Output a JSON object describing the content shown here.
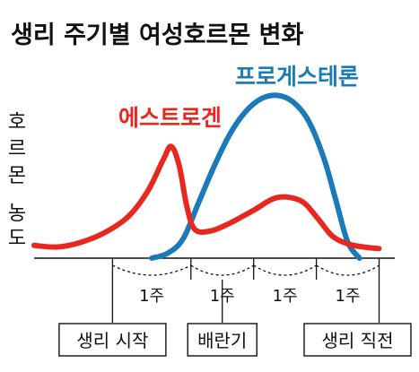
{
  "chart_data": {
    "type": "line",
    "title": "생리 주기별 여성호르몬 변화",
    "ylabel": "호르몬 농도",
    "x_unit": "주",
    "xlim": [
      0,
      4.6
    ],
    "ylim": [
      0,
      1
    ],
    "grid": false,
    "legend": "inline labels",
    "colors": {
      "estrogen": "#e8281e",
      "progesterone": "#1b7ab8",
      "text": "#111111"
    },
    "series": [
      {
        "name": "에스트로겐",
        "color": "#e8281e",
        "x": [
          0,
          0.3,
          0.6,
          0.9,
          1.2,
          1.45,
          1.65,
          1.75,
          1.85,
          1.95,
          2.05,
          2.25,
          2.5,
          2.8,
          3.1,
          3.4,
          3.6,
          3.8,
          4.0,
          4.2,
          4.4
        ],
        "y": [
          0.08,
          0.07,
          0.1,
          0.16,
          0.26,
          0.42,
          0.62,
          0.7,
          0.58,
          0.32,
          0.18,
          0.17,
          0.22,
          0.3,
          0.38,
          0.36,
          0.26,
          0.14,
          0.09,
          0.07,
          0.06
        ]
      },
      {
        "name": "프로게스테론",
        "color": "#1b7ab8",
        "x": [
          1.5,
          1.7,
          1.9,
          2.1,
          2.3,
          2.5,
          2.7,
          2.9,
          3.1,
          3.3,
          3.5,
          3.7,
          3.85,
          4.0,
          4.15
        ],
        "y": [
          0.0,
          0.03,
          0.12,
          0.35,
          0.58,
          0.78,
          0.92,
          1.0,
          1.02,
          0.98,
          0.86,
          0.62,
          0.36,
          0.1,
          0.0
        ]
      }
    ],
    "weeks": [
      {
        "label": "1주",
        "start": 1.0,
        "end": 2.0
      },
      {
        "label": "1주",
        "start": 2.0,
        "end": 2.8
      },
      {
        "label": "1주",
        "start": 2.8,
        "end": 3.6
      },
      {
        "label": "1주",
        "start": 3.6,
        "end": 4.4
      }
    ],
    "markers": [
      {
        "label": "생리 시작",
        "x": 1.0
      },
      {
        "label": "배란기",
        "x": 2.4
      },
      {
        "label": "생리 직전",
        "x": 4.4
      }
    ]
  }
}
